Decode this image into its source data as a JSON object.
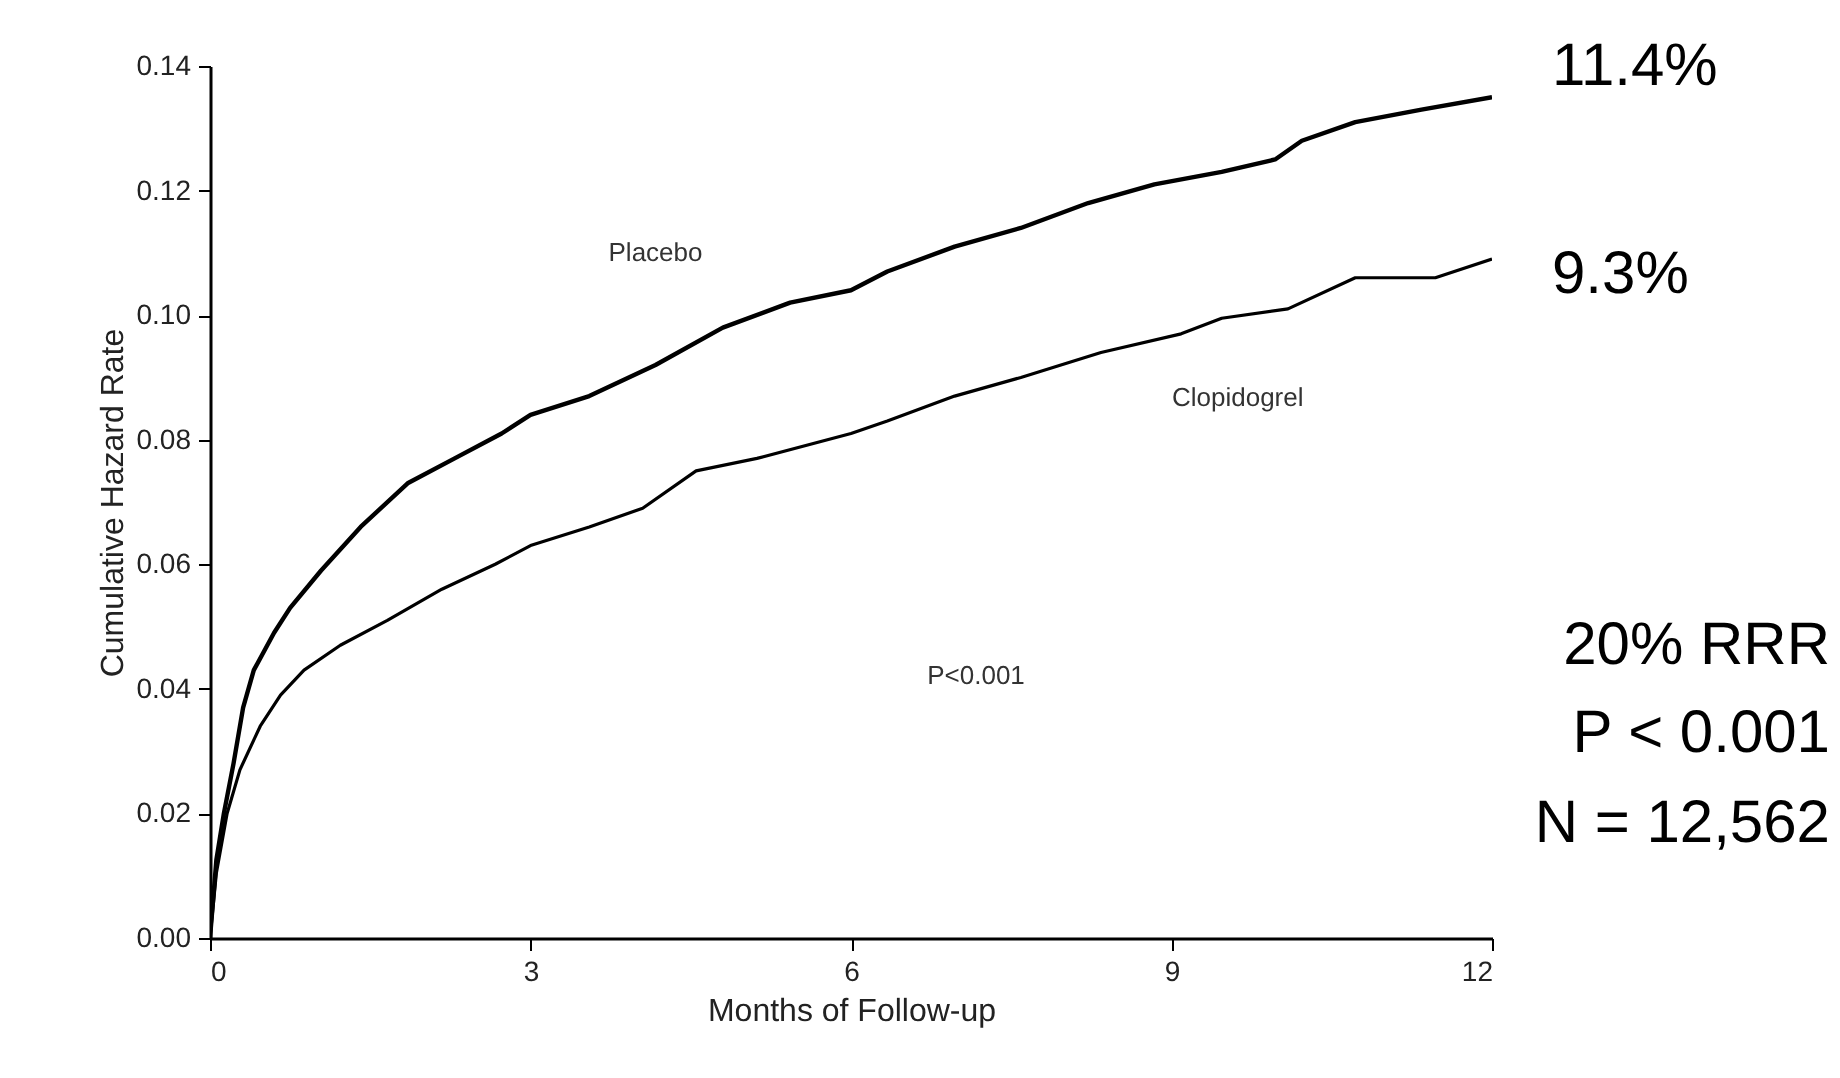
{
  "chart_data": {
    "type": "line",
    "xlabel": "Months of Follow-up",
    "ylabel": "Cumulative Hazard Rate",
    "xlim": [
      0,
      12
    ],
    "xticks": [
      0,
      3,
      6,
      9,
      12
    ],
    "ylim": [
      0,
      0.14
    ],
    "yticks": [
      {
        "value": 0,
        "label": "0.00"
      },
      0.02,
      0.04,
      0.06,
      0.08,
      {
        "value": 0.1,
        "label": "0.10"
      },
      0.12,
      0.14
    ],
    "grid": false,
    "legend": false,
    "series": [
      {
        "name": "Placebo",
        "color": "#000000",
        "x": [
          0,
          0.06,
          0.13,
          0.22,
          0.31,
          0.41,
          0.6,
          0.75,
          1.04,
          1.41,
          1.85,
          2.29,
          2.73,
          3,
          3.55,
          4.17,
          4.8,
          5.43,
          6,
          6.34,
          6.97,
          7.59,
          8.22,
          8.84,
          9.47,
          9.97,
          10.22,
          10.72,
          11.34,
          12
        ],
        "values": [
          0,
          0.0126,
          0.02,
          0.028,
          0.037,
          0.043,
          0.049,
          0.053,
          0.059,
          0.066,
          0.073,
          0.077,
          0.081,
          0.084,
          0.087,
          0.092,
          0.098,
          0.102,
          0.104,
          0.107,
          0.111,
          0.114,
          0.118,
          0.121,
          0.123,
          0.125,
          0.128,
          0.131,
          0.133,
          0.135
        ]
      },
      {
        "name": "Clopidogrel",
        "color": "#000000",
        "x": [
          0,
          0.06,
          0.16,
          0.28,
          0.47,
          0.66,
          0.88,
          1.22,
          1.66,
          2.17,
          2.67,
          3,
          3.55,
          4.05,
          4.55,
          5.12,
          6,
          6.34,
          6.97,
          7.59,
          8.34,
          9.09,
          9.47,
          10.09,
          10.72,
          11.47,
          12
        ],
        "values": [
          0,
          0.0105,
          0.02,
          0.027,
          0.034,
          0.039,
          0.043,
          0.047,
          0.051,
          0.056,
          0.06,
          0.063,
          0.066,
          0.069,
          0.075,
          0.077,
          0.081,
          0.083,
          0.087,
          0.09,
          0.094,
          0.097,
          0.0995,
          0.101,
          0.106,
          0.106,
          0.109
        ]
      }
    ],
    "annotations": [
      {
        "text": "11.4%",
        "x": 12,
        "y": 0.135
      },
      {
        "text": "9.3%",
        "x": 12,
        "y": 0.109
      },
      "P<0.001",
      "20% RRR",
      "P < 0.001",
      "N = 12,562"
    ]
  }
}
